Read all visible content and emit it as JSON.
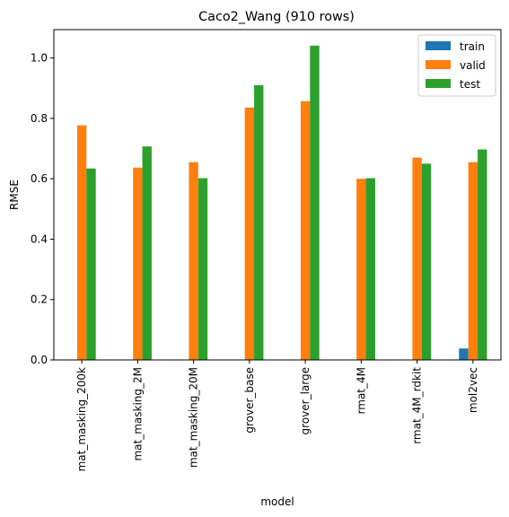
{
  "chart_data": {
    "type": "bar",
    "title": "Caco2_Wang (910 rows)",
    "xlabel": "model",
    "ylabel": "RMSE",
    "ylim": [
      0,
      1.094
    ],
    "yticks": [
      "0.0",
      "0.2",
      "0.4",
      "0.6",
      "0.8",
      "1.0"
    ],
    "grid": false,
    "legend_position": "top-right",
    "categories": [
      "mat_masking_200k",
      "mat_masking_2M",
      "mat_masking_20M",
      "grover_base",
      "grover_large",
      "rmat_4M",
      "rmat_4M_rdkit",
      "mol2vec"
    ],
    "series": [
      {
        "name": "train",
        "color": "#1f77b4",
        "values": [
          0,
          0,
          0,
          0,
          0,
          0,
          0,
          0.038
        ]
      },
      {
        "name": "valid",
        "color": "#ff7f0e",
        "values": [
          0.777,
          0.637,
          0.655,
          0.836,
          0.857,
          0.6,
          0.67,
          0.655
        ]
      },
      {
        "name": "test",
        "color": "#2ca02c",
        "values": [
          0.634,
          0.707,
          0.602,
          0.91,
          1.041,
          0.602,
          0.65,
          0.697
        ]
      }
    ]
  }
}
